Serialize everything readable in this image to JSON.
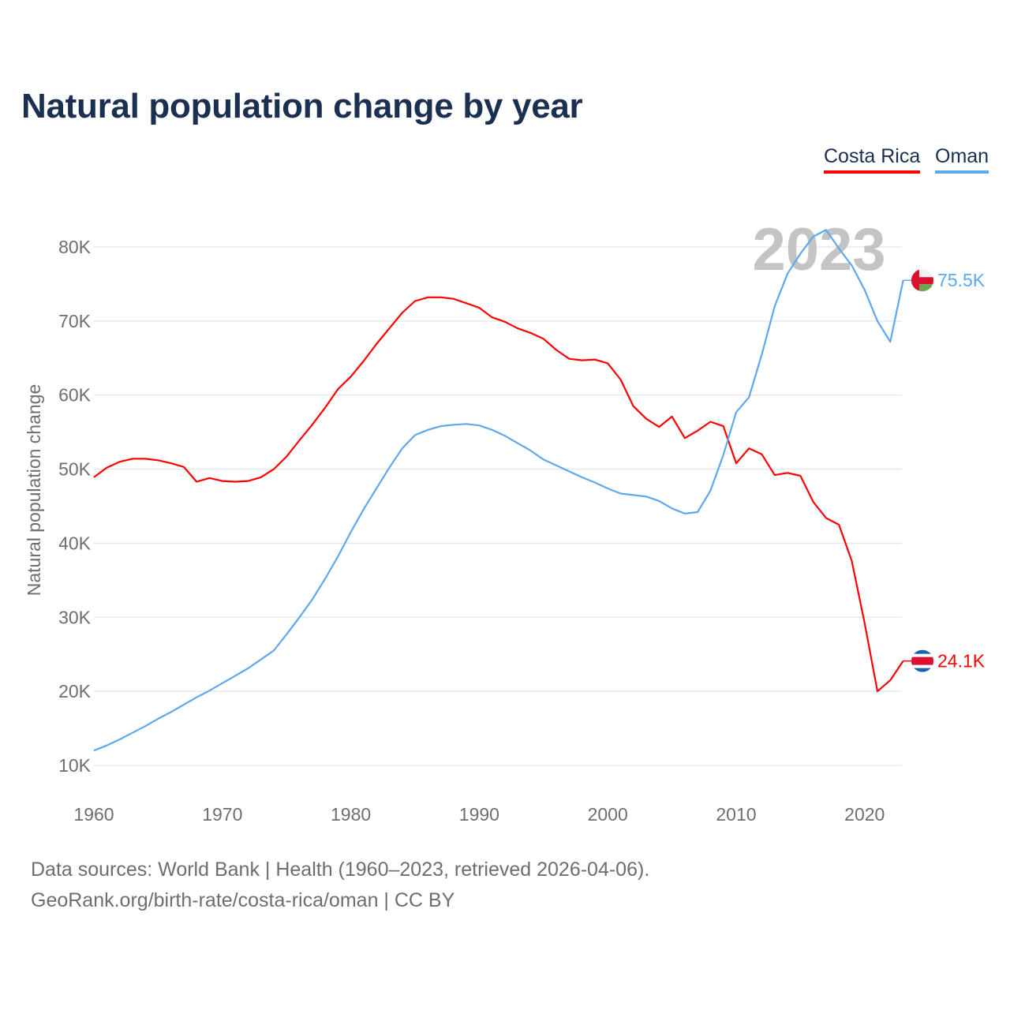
{
  "title": "Natural population change by year",
  "legend": [
    {
      "label": "Costa Rica",
      "color": "#ff0000"
    },
    {
      "label": "Oman",
      "color": "#5fa8ec"
    }
  ],
  "footer": {
    "source": "Data sources: World Bank | Health (1960–2023, retrieved 2026-04-06).",
    "link": "GeoRank.org/birth-rate/costa-rica/oman | CC BY"
  },
  "chart_data": {
    "type": "line",
    "title": "Natural population change by year",
    "xlabel": "",
    "ylabel": "Natural population change",
    "xlim": [
      1960,
      2023
    ],
    "ylim": [
      10000,
      80000
    ],
    "x_ticks": [
      1960,
      1970,
      1980,
      1990,
      2000,
      2010,
      2020
    ],
    "y_ticks": [
      10000,
      20000,
      30000,
      40000,
      50000,
      60000,
      70000,
      80000
    ],
    "y_tick_labels": [
      "10K",
      "20K",
      "30K",
      "40K",
      "50K",
      "60K",
      "70K",
      "80K"
    ],
    "grid": "horizontal",
    "legend_position": "top-right",
    "year_watermark": "2023",
    "x": [
      1960,
      1961,
      1962,
      1963,
      1964,
      1965,
      1966,
      1967,
      1968,
      1969,
      1970,
      1971,
      1972,
      1973,
      1974,
      1975,
      1976,
      1977,
      1978,
      1979,
      1980,
      1981,
      1982,
      1983,
      1984,
      1985,
      1986,
      1987,
      1988,
      1989,
      1990,
      1991,
      1992,
      1993,
      1994,
      1995,
      1996,
      1997,
      1998,
      1999,
      2000,
      2001,
      2002,
      2003,
      2004,
      2005,
      2006,
      2007,
      2008,
      2009,
      2010,
      2011,
      2012,
      2013,
      2014,
      2015,
      2016,
      2017,
      2018,
      2019,
      2020,
      2021,
      2022,
      2023
    ],
    "series": [
      {
        "name": "Costa Rica",
        "color": "#ff0000",
        "end_label": "24.1K",
        "flag": "costa-rica",
        "values": [
          48900,
          50200,
          51000,
          51400,
          51400,
          51200,
          50800,
          50300,
          48300,
          48800,
          48400,
          48300,
          48400,
          48900,
          50000,
          51700,
          53900,
          56000,
          58300,
          60800,
          62500,
          64600,
          66900,
          69000,
          71100,
          72700,
          73200,
          73200,
          73000,
          72400,
          71800,
          70500,
          69900,
          69000,
          68400,
          67600,
          66100,
          64900,
          64700,
          64800,
          64300,
          62100,
          58500,
          56800,
          55700,
          57100,
          54200,
          55200,
          56400,
          55800,
          50800,
          52800,
          52000,
          49200,
          49500,
          49100,
          45600,
          43400,
          42500,
          37600,
          29200,
          20000,
          21500,
          24100
        ]
      },
      {
        "name": "Oman",
        "color": "#5fa8ec",
        "end_label": "75.5K",
        "flag": "oman",
        "values": [
          12000,
          12700,
          13500,
          14400,
          15300,
          16300,
          17200,
          18200,
          19200,
          20100,
          21100,
          22100,
          23100,
          24300,
          25500,
          27700,
          30000,
          32400,
          35200,
          38200,
          41500,
          44600,
          47400,
          50200,
          52800,
          54600,
          55300,
          55800,
          56000,
          56100,
          55900,
          55300,
          54500,
          53500,
          52500,
          51300,
          50500,
          49700,
          48900,
          48200,
          47400,
          46700,
          46500,
          46300,
          45700,
          44700,
          44000,
          44200,
          47100,
          51900,
          57700,
          59700,
          65500,
          72000,
          76400,
          79100,
          81400,
          82300,
          79800,
          77500,
          74200,
          70000,
          67200,
          75500
        ]
      }
    ]
  }
}
